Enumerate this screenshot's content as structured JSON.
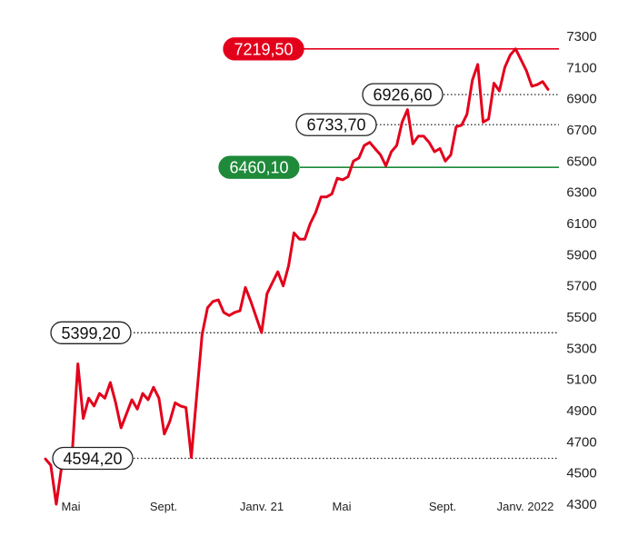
{
  "chart_data": {
    "type": "line",
    "title": "",
    "xlabel": "",
    "ylabel": "",
    "ylim": [
      4300,
      7300
    ],
    "y_ticks": [
      "7300",
      "7100",
      "6900",
      "6700",
      "6500",
      "6300",
      "6100",
      "5900",
      "5700",
      "5500",
      "5300",
      "5100",
      "4900",
      "4700",
      "4500",
      "4300"
    ],
    "x_ticks": [
      "Mai",
      "Sept.",
      "Janv. 21",
      "Mai",
      "Sept.",
      "Janv. 2022"
    ],
    "y_axis_side": "right",
    "grid": false,
    "line_color": "#e3001b",
    "reference_lines": [
      {
        "label": "7219,50",
        "value": 7219.5,
        "style": "solid",
        "color": "#e3001b",
        "kind": "high"
      },
      {
        "label": "6926,60",
        "value": 6926.6,
        "style": "dotted",
        "color": "#222222",
        "kind": "value"
      },
      {
        "label": "6733,70",
        "value": 6733.7,
        "style": "dotted",
        "color": "#222222",
        "kind": "value"
      },
      {
        "label": "6460,10",
        "value": 6460.1,
        "style": "solid",
        "color": "#1e8a3a",
        "kind": "low"
      },
      {
        "label": "5399,20",
        "value": 5399.2,
        "style": "dotted",
        "color": "#222222",
        "kind": "value"
      },
      {
        "label": "4594,20",
        "value": 4594.2,
        "style": "dotted",
        "color": "#222222",
        "kind": "value"
      }
    ],
    "series": [
      {
        "values": [
          4590,
          4550,
          4300,
          4540,
          4570,
          4650,
          5200,
          4850,
          4980,
          4930,
          5010,
          4980,
          5080,
          4950,
          4790,
          4880,
          4970,
          4910,
          5010,
          4970,
          5050,
          4980,
          4750,
          4830,
          4950,
          4930,
          4920,
          4600,
          5000,
          5390,
          5560,
          5600,
          5610,
          5530,
          5510,
          5530,
          5540,
          5690,
          5600,
          5500,
          5400,
          5650,
          5720,
          5790,
          5700,
          5830,
          6040,
          6000,
          6000,
          6100,
          6170,
          6270,
          6270,
          6290,
          6390,
          6380,
          6400,
          6500,
          6520,
          6600,
          6620,
          6580,
          6540,
          6470,
          6560,
          6600,
          6750,
          6830,
          6610,
          6660,
          6660,
          6620,
          6560,
          6580,
          6500,
          6540,
          6720,
          6730,
          6800,
          7020,
          7120,
          6750,
          6770,
          7000,
          6950,
          7100,
          7180,
          7219.5,
          7150,
          7080,
          6980,
          6990,
          7010,
          6960
        ]
      }
    ]
  }
}
